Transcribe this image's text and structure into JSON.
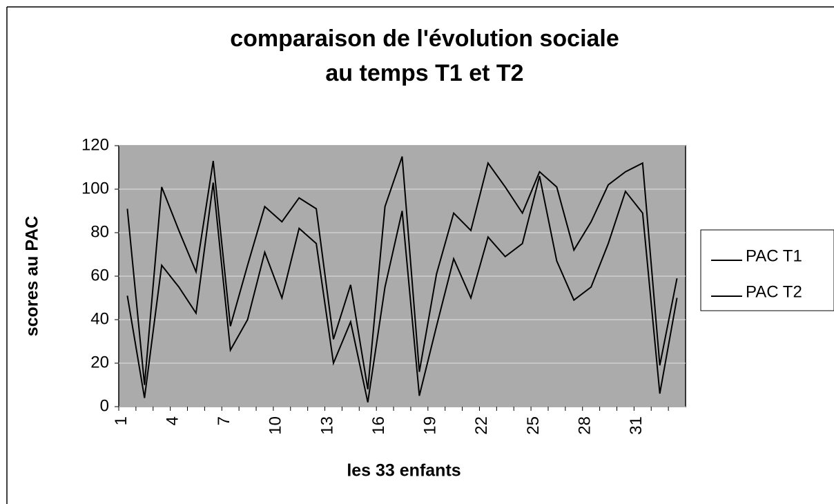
{
  "chart_data": {
    "type": "line",
    "title": [
      "comparaison de l'évolution sociale",
      "au temps T1 et T2"
    ],
    "x_label": "les 33 enfants",
    "y_label": "scores au PAC",
    "categories": [
      "1",
      null,
      null,
      "4",
      null,
      null,
      "7",
      null,
      null,
      "10",
      null,
      null,
      "13",
      null,
      null,
      "16",
      null,
      null,
      "19",
      null,
      null,
      "22",
      null,
      null,
      "25",
      null,
      null,
      "28",
      null,
      null,
      "31",
      null,
      null
    ],
    "series": [
      {
        "name": "PAC T1",
        "color": "#000000",
        "values": [
          51,
          4,
          65,
          55,
          43,
          103,
          26,
          40,
          71,
          50,
          82,
          75,
          20,
          39,
          2,
          55,
          90,
          5,
          37,
          68,
          50,
          78,
          69,
          75,
          106,
          67,
          49,
          55,
          75,
          99,
          89,
          6,
          50
        ]
      },
      {
        "name": "PAC T2",
        "color": "#000000",
        "values": [
          91,
          10,
          101,
          81,
          62,
          113,
          37,
          65,
          92,
          85,
          96,
          91,
          31,
          56,
          8,
          92,
          115,
          16,
          61,
          89,
          81,
          112,
          101,
          89,
          108,
          101,
          72,
          85,
          102,
          108,
          112,
          19,
          59
        ]
      }
    ],
    "ylim": [
      0,
      120
    ],
    "yticks": [
      0,
      20,
      40,
      60,
      80,
      100,
      120
    ],
    "grid": true,
    "legend": "right"
  }
}
